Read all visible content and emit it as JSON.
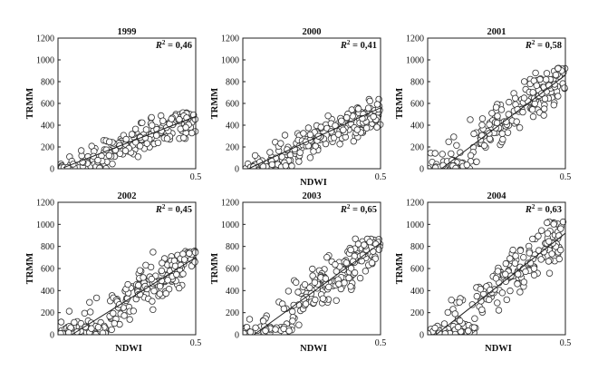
{
  "chart_data": [
    {
      "type": "scatter",
      "title": "1999",
      "annotation": {
        "text_prefix": "R",
        "superscript": "2",
        "value": " = 0,46"
      },
      "xlabel": "",
      "ylabel": "TRMM",
      "xlim": [
        0,
        0.5
      ],
      "ylim": [
        0,
        1200
      ],
      "x_ticks": [
        {
          "v": 0.5,
          "label": "0.5"
        }
      ],
      "y_ticks": [
        0,
        200,
        400,
        600,
        800,
        1000,
        1200
      ],
      "trend": {
        "x0": 0.02,
        "y0": 10,
        "x1": 0.5,
        "y1": 480
      },
      "scatter_params": {
        "seed": 1999,
        "slope": 950,
        "intercept": -10,
        "noise": 100,
        "maxy": 520,
        "xmin": 0.0,
        "xmax": 0.5
      }
    },
    {
      "type": "scatter",
      "title": "2000",
      "annotation": {
        "text_prefix": "R",
        "superscript": "2",
        "value": " = 0,41"
      },
      "xlabel": "NDWI",
      "ylabel": "TRMM",
      "xlim": [
        0,
        0.5
      ],
      "ylim": [
        0,
        1200
      ],
      "x_ticks": [
        {
          "v": 0.5,
          "label": "0.5"
        }
      ],
      "y_ticks": [
        0,
        200,
        400,
        600,
        800,
        1000,
        1200
      ],
      "trend": {
        "x0": 0.02,
        "y0": 0,
        "x1": 0.5,
        "y1": 560
      },
      "scatter_params": {
        "seed": 2000,
        "slope": 1100,
        "intercept": -20,
        "noise": 110,
        "maxy": 660,
        "xmin": 0.0,
        "xmax": 0.5
      }
    },
    {
      "type": "scatter",
      "title": "2001",
      "annotation": {
        "text_prefix": "R",
        "superscript": "2",
        "value": " = 0,58"
      },
      "xlabel": "",
      "ylabel": "TRMM",
      "xlim": [
        0,
        0.5
      ],
      "ylim": [
        0,
        1200
      ],
      "x_ticks": [
        {
          "v": 0.5,
          "label": "0.5"
        }
      ],
      "y_ticks": [
        0,
        200,
        400,
        600,
        800,
        1000,
        1200
      ],
      "trend": {
        "x0": 0.05,
        "y0": 0,
        "x1": 0.5,
        "y1": 860
      },
      "scatter_params": {
        "seed": 2001,
        "slope": 1850,
        "intercept": -60,
        "noise": 140,
        "maxy": 930,
        "xmin": 0.0,
        "xmax": 0.5
      }
    },
    {
      "type": "scatter",
      "title": "2002",
      "annotation": {
        "text_prefix": "R",
        "superscript": "2",
        "value": " = 0,45"
      },
      "xlabel": "NDWI",
      "ylabel": "TRMM",
      "xlim": [
        0,
        0.5
      ],
      "ylim": [
        0,
        1200
      ],
      "x_ticks": [
        {
          "v": 0.5,
          "label": "0.5"
        }
      ],
      "y_ticks": [
        0,
        200,
        400,
        600,
        800,
        1000,
        1200
      ],
      "trend": {
        "x0": 0.05,
        "y0": 0,
        "x1": 0.5,
        "y1": 700
      },
      "scatter_params": {
        "seed": 2002,
        "slope": 1550,
        "intercept": -60,
        "noise": 150,
        "maxy": 760,
        "xmin": 0.0,
        "xmax": 0.5
      }
    },
    {
      "type": "scatter",
      "title": "2003",
      "annotation": {
        "text_prefix": "R",
        "superscript": "2",
        "value": " = 0,65"
      },
      "xlabel": "NDWI",
      "ylabel": "TRMM",
      "xlim": [
        0,
        0.5
      ],
      "ylim": [
        0,
        1200
      ],
      "x_ticks": [
        {
          "v": 0.5,
          "label": "0.5"
        }
      ],
      "y_ticks": [
        0,
        200,
        400,
        600,
        800,
        1000,
        1200
      ],
      "trend": {
        "x0": 0.04,
        "y0": 0,
        "x1": 0.5,
        "y1": 830
      },
      "scatter_params": {
        "seed": 2003,
        "slope": 1800,
        "intercept": -60,
        "noise": 140,
        "maxy": 870,
        "xmin": 0.0,
        "xmax": 0.5
      }
    },
    {
      "type": "scatter",
      "title": "2004",
      "annotation": {
        "text_prefix": "R",
        "superscript": "2",
        "value": " = 0,63"
      },
      "xlabel": "NDWI",
      "ylabel": "TRMM",
      "xlim": [
        0,
        0.5
      ],
      "ylim": [
        0,
        1200
      ],
      "x_ticks": [
        {
          "v": 0.5,
          "label": "0.5"
        }
      ],
      "y_ticks": [
        0,
        200,
        400,
        600,
        800,
        1000,
        1200
      ],
      "trend": {
        "x0": 0.03,
        "y0": 0,
        "x1": 0.5,
        "y1": 920
      },
      "scatter_params": {
        "seed": 2004,
        "slope": 1950,
        "intercept": -50,
        "noise": 150,
        "maxy": 1030,
        "xmin": 0.0,
        "xmax": 0.5
      }
    }
  ]
}
